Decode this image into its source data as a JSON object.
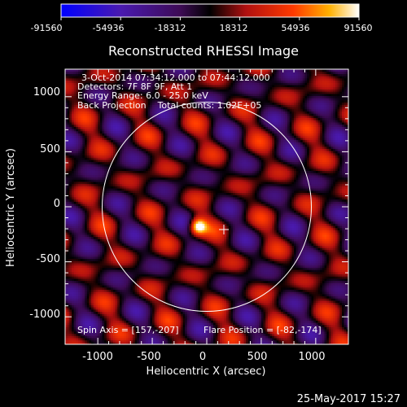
{
  "colorbar": {
    "tick_labels": [
      "-91560",
      "-54936",
      "-18312",
      "18312",
      "54936",
      "91560"
    ],
    "range": [
      -91560,
      91560
    ]
  },
  "chart_data": {
    "type": "heatmap",
    "title": "Reconstructed RHESSI Image",
    "xlabel": "Heliocentric X (arcsec)",
    "ylabel": "Heliocentric Y (arcsec)",
    "xlim": [
      -1300,
      1300
    ],
    "ylim": [
      -1250,
      1250
    ],
    "x_ticks": [
      -1000,
      -500,
      0,
      500,
      1000
    ],
    "y_ticks": [
      -1000,
      -500,
      0,
      500,
      1000
    ],
    "x_tick_labels": [
      "-1000",
      "-500",
      "0",
      "500",
      "1000"
    ],
    "y_tick_labels": [
      "-1000",
      "-500",
      "0",
      "500",
      "1000"
    ],
    "colormap": "blue-purple-red-orange-yellow-white",
    "solar_limb_radius_arcsec": 960,
    "spin_axis": [
      157,
      -207
    ],
    "flare_position": [
      -82,
      -174
    ],
    "peak_value": 91560,
    "annotations": {
      "time_range": "3-Oct-2014 07:34:12.000 to 07:44:12.000",
      "detectors": "Detectors: 7F 8F 9F, Att 1",
      "energy_range": "Energy Range: 6.0 - 25.0 keV",
      "method_counts": "Back Projection    Total counts: 1.02E+05",
      "spin_axis_text": "Spin Axis = [157,-207]",
      "flare_position_text": "Flare Position = [-82,-174]"
    }
  },
  "footer": {
    "date": "25-May-2017 15:27"
  }
}
